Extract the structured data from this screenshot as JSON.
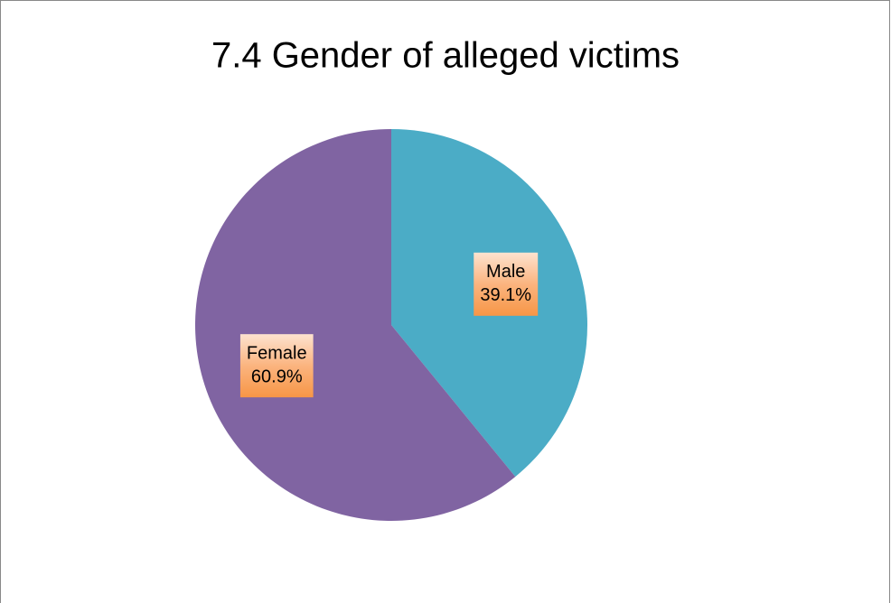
{
  "chart_data": {
    "type": "pie",
    "title": "7.4 Gender of alleged victims",
    "categories": [
      "Male",
      "Female"
    ],
    "values": [
      39.1,
      60.9
    ],
    "value_labels": [
      "39.1%",
      "60.9%"
    ],
    "colors": [
      "#4bacc6",
      "#8064a2"
    ]
  }
}
